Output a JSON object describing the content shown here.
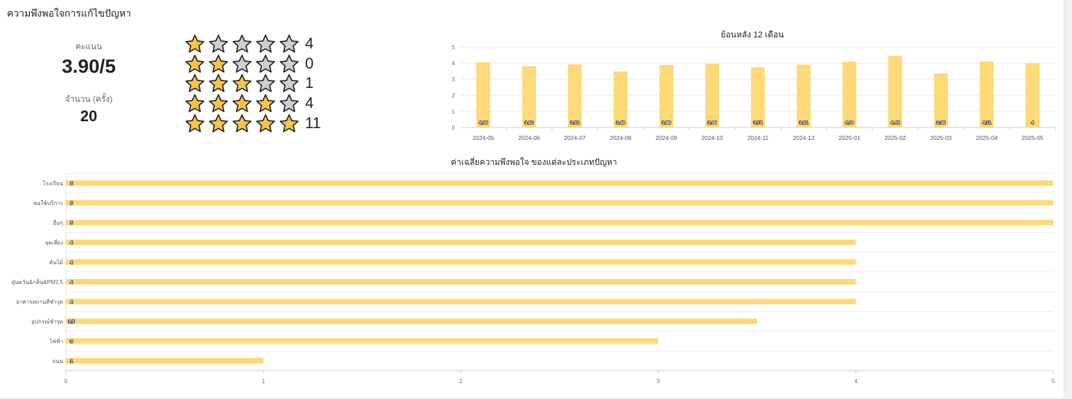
{
  "card": {
    "title": "ความพึงพอใจการแก้ไขปัญหา"
  },
  "summary": {
    "score_label": "คะแนน",
    "score_value": "3.90/5",
    "count_label": "จำนวน (ครั้ง)",
    "count_value": "20"
  },
  "rating_breakdown": [
    {
      "stars": 1,
      "count": "4"
    },
    {
      "stars": 2,
      "count": "0"
    },
    {
      "stars": 3,
      "count": "1"
    },
    {
      "stars": 4,
      "count": "4"
    },
    {
      "stars": 5,
      "count": "11"
    }
  ],
  "colors": {
    "bar": "#fdd978",
    "star_fill": "#f9c24a",
    "star_empty": "#cfcfcf"
  },
  "icons": {
    "star": "star-icon"
  },
  "chart_data": [
    {
      "type": "bar",
      "title": "ย้อนหลัง 12 เดือน",
      "categories": [
        "2024-05",
        "2024-06",
        "2024-07",
        "2024-08",
        "2024-09",
        "2024-10",
        "2024-11",
        "2024-12",
        "2025-01",
        "2025-02",
        "2025-03",
        "2025-04",
        "2025-05"
      ],
      "values": [
        4.06,
        3.82,
        3.92,
        3.48,
        3.88,
        3.96,
        3.74,
        3.91,
        4.09,
        4.44,
        3.36,
        4.11,
        4
      ],
      "ylim": [
        0,
        5
      ],
      "yticks": [
        "0",
        "1",
        "2",
        "3",
        "4",
        "5"
      ],
      "grid": true
    },
    {
      "type": "bar",
      "orientation": "horizontal",
      "title": "ค่าเฉลี่ยความพึงพอใจ ของแต่ละประเภทปัญหา",
      "categories": [
        "โรงเรียน",
        "ขอใช้บริการ",
        "อื่นๆ",
        "จุดเสี่ยง",
        "ต้นไม้",
        "ฝุ่นควัน&กลิ่น&PM2.5",
        "อาคารสถานที่ชำรุด",
        "อุปกรณ์ชำรุด",
        "ไฟฟ้า",
        "ถนน"
      ],
      "values": [
        5,
        5,
        5,
        4,
        4,
        4,
        4,
        3.5,
        3,
        1
      ],
      "xlim": [
        0,
        5
      ],
      "xticks": [
        "0",
        "1",
        "2",
        "3",
        "4",
        "5"
      ],
      "grid": true
    }
  ]
}
